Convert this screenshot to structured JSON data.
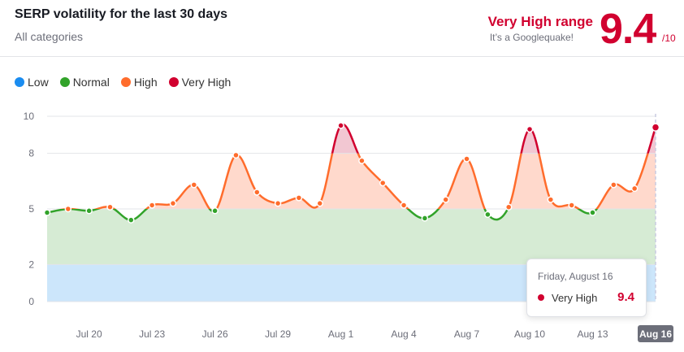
{
  "header": {
    "title": "SERP volatility for the last 30 days",
    "subtitle": "All categories",
    "range_label": "Very High range",
    "range_sub": "It’s a Googlequake!",
    "score": "9.4",
    "score_max": "/10"
  },
  "legend": [
    {
      "label": "Low",
      "color": "#1a8cf0"
    },
    {
      "label": "Normal",
      "color": "#32a32a"
    },
    {
      "label": "High",
      "color": "#ff6c2c"
    },
    {
      "label": "Very High",
      "color": "#d1002f"
    }
  ],
  "tooltip": {
    "date": "Friday, August 16",
    "series": "Very High",
    "value": "9.4"
  },
  "chart_data": {
    "type": "area",
    "y_ticks": [
      0,
      2,
      5,
      8,
      10
    ],
    "ylim": [
      0,
      10
    ],
    "bands": [
      {
        "from": 0,
        "to": 2,
        "level": "Low",
        "color": "#cce6fb"
      },
      {
        "from": 2,
        "to": 5,
        "level": "Normal",
        "color": "#d6ebd4"
      },
      {
        "from": 5,
        "to": 8,
        "level": "High",
        "color": "#ffd9cc"
      },
      {
        "from": 8,
        "to": 10,
        "level": "Very High",
        "color": "#f2c7d2"
      }
    ],
    "x_tick_labels": [
      "Jul 20",
      "Jul 23",
      "Jul 26",
      "Jul 29",
      "Aug 1",
      "Aug 4",
      "Aug 7",
      "Aug 10",
      "Aug 13",
      "Aug 16"
    ],
    "x_tick_index": [
      2,
      5,
      8,
      11,
      14,
      17,
      20,
      23,
      26,
      29
    ],
    "highlight_label": "Aug 16",
    "values": [
      4.8,
      5.0,
      4.9,
      5.1,
      4.4,
      5.2,
      5.3,
      6.3,
      4.9,
      7.9,
      5.9,
      5.3,
      5.6,
      5.3,
      9.5,
      7.6,
      6.4,
      5.2,
      4.5,
      5.5,
      7.7,
      4.7,
      5.1,
      9.3,
      5.5,
      5.2,
      4.8,
      6.3,
      6.1,
      9.4
    ]
  }
}
